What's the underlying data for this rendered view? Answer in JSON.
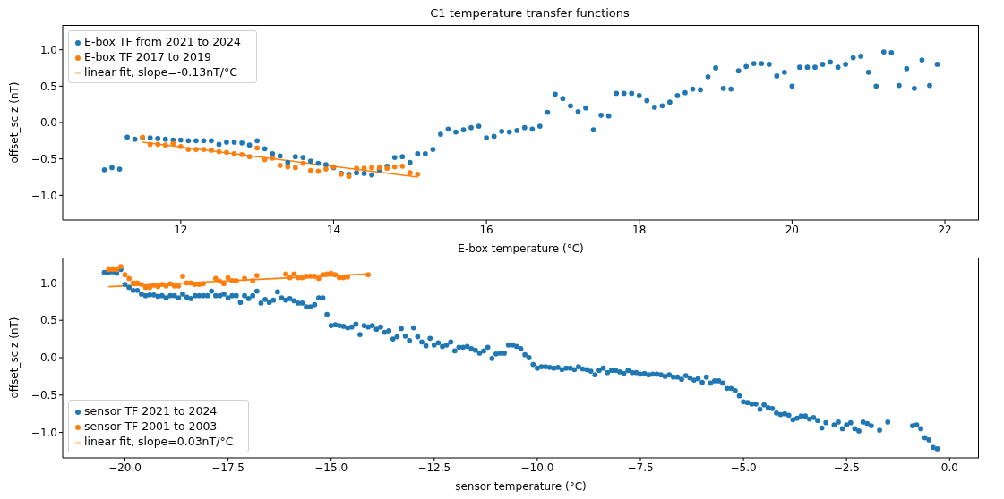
{
  "chart_data": [
    {
      "type": "scatter",
      "title": "C1 temperature transfer functions",
      "xlabel": "E-box temperature (°C)",
      "ylabel": "offset_sc z (nT)",
      "legend": "top left",
      "marker": "circle",
      "xlim": [
        10.455,
        22.445
      ],
      "xticks": [
        12,
        14,
        16,
        18,
        20,
        22
      ],
      "ylim": [
        -1.34,
        1.34
      ],
      "yticks": [
        {
          "value": -1,
          "label": "−1.0"
        },
        {
          "value": -0.5,
          "label": "−0.5"
        },
        {
          "value": 0,
          "label": "0.0"
        },
        {
          "value": 0.5,
          "label": "0.5"
        },
        {
          "value": 1,
          "label": "1.0"
        }
      ],
      "series": [
        {
          "name": "E-box TF from 2021 to 2024",
          "color": "#1f77b4",
          "x": [
            11.0,
            11.1,
            11.2,
            11.3,
            11.4,
            11.5,
            11.6,
            11.7,
            11.8,
            11.9,
            12.0,
            12.1,
            12.2,
            12.3,
            12.4,
            12.5,
            12.6,
            12.7,
            12.8,
            12.9,
            13.0,
            13.1,
            13.2,
            13.3,
            13.4,
            13.5,
            13.6,
            13.7,
            13.8,
            13.9,
            14.0,
            14.1,
            14.2,
            14.3,
            14.4,
            14.5,
            14.6,
            14.7,
            14.8,
            14.9,
            15.0,
            15.1,
            15.2,
            15.3,
            15.4,
            15.5,
            15.6,
            15.7,
            15.8,
            15.9,
            16.0,
            16.1,
            16.2,
            16.3,
            16.4,
            16.5,
            16.6,
            16.7,
            16.8,
            16.9,
            17.0,
            17.1,
            17.2,
            17.3,
            17.4,
            17.5,
            17.6,
            17.7,
            17.8,
            17.9,
            18.0,
            18.1,
            18.2,
            18.3,
            18.4,
            18.5,
            18.6,
            18.7,
            18.8,
            18.9,
            19.0,
            19.1,
            19.2,
            19.3,
            19.4,
            19.5,
            19.6,
            19.7,
            19.8,
            19.9,
            20.0,
            20.1,
            20.2,
            20.3,
            20.4,
            20.5,
            20.6,
            20.7,
            20.8,
            20.9,
            21.0,
            21.1,
            21.2,
            21.3,
            21.4,
            21.5,
            21.6,
            21.7,
            21.8,
            21.9
          ],
          "values": [
            -0.65,
            -0.62,
            -0.64,
            -0.2,
            -0.23,
            -0.21,
            -0.21,
            -0.22,
            -0.23,
            -0.24,
            -0.24,
            -0.25,
            -0.25,
            -0.25,
            -0.25,
            -0.3,
            -0.27,
            -0.27,
            -0.28,
            -0.31,
            -0.25,
            -0.36,
            -0.43,
            -0.46,
            -0.55,
            -0.47,
            -0.48,
            -0.53,
            -0.56,
            -0.58,
            -0.62,
            -0.7,
            -0.71,
            -0.69,
            -0.7,
            -0.72,
            -0.65,
            -0.6,
            -0.48,
            -0.47,
            -0.55,
            -0.43,
            -0.43,
            -0.37,
            -0.16,
            -0.09,
            -0.13,
            -0.1,
            -0.07,
            -0.05,
            -0.21,
            -0.19,
            -0.12,
            -0.13,
            -0.11,
            -0.07,
            -0.09,
            -0.05,
            0.14,
            0.39,
            0.33,
            0.23,
            0.15,
            0.2,
            -0.1,
            0.1,
            0.09,
            0.4,
            0.4,
            0.4,
            0.37,
            0.3,
            0.21,
            0.23,
            0.28,
            0.37,
            0.41,
            0.46,
            0.45,
            0.63,
            0.75,
            0.47,
            0.46,
            0.71,
            0.77,
            0.81,
            0.81,
            0.8,
            0.64,
            0.69,
            0.5,
            0.76,
            0.76,
            0.76,
            0.8,
            0.83,
            0.76,
            0.8,
            0.89,
            0.91,
            0.69,
            0.5,
            0.97,
            0.96,
            0.51,
            0.74,
            0.47,
            0.86,
            0.51,
            0.8
          ]
        },
        {
          "name": "E-box TF 2017 to 2019",
          "color": "#ff7f0e",
          "x": [
            11.5,
            11.6,
            11.7,
            11.8,
            11.9,
            12.0,
            12.1,
            12.2,
            12.3,
            12.4,
            12.5,
            12.6,
            12.7,
            12.8,
            12.9,
            13.0,
            13.1,
            13.2,
            13.3,
            13.4,
            13.5,
            13.6,
            13.7,
            13.8,
            13.9,
            14.0,
            14.1,
            14.2,
            14.3,
            14.4,
            14.5,
            14.6,
            14.7,
            14.8,
            14.9,
            15.0,
            15.1
          ],
          "values": [
            -0.2,
            -0.3,
            -0.3,
            -0.31,
            -0.29,
            -0.33,
            -0.37,
            -0.37,
            -0.37,
            -0.38,
            -0.4,
            -0.41,
            -0.43,
            -0.44,
            -0.47,
            -0.35,
            -0.51,
            -0.49,
            -0.59,
            -0.61,
            -0.62,
            -0.56,
            -0.66,
            -0.67,
            -0.64,
            -0.61,
            -0.71,
            -0.74,
            -0.63,
            -0.63,
            -0.62,
            -0.62,
            -0.63,
            -0.61,
            -0.6,
            -0.69,
            -0.71
          ]
        },
        {
          "name": "linear fit, slope=-0.13nT/°C",
          "type": "line",
          "marker": "none",
          "color": "#ff7f0e",
          "x": [
            11.5,
            15.1
          ],
          "values": [
            -0.27,
            -0.75
          ]
        }
      ]
    },
    {
      "type": "scatter",
      "xlabel": "sensor temperature (°C)",
      "ylabel": "offset_sc z (nT)",
      "legend": "bottom left",
      "marker": "circle",
      "xlim": [
        -21.51,
        0.71
      ],
      "xticks": [
        {
          "value": -20,
          "label": "−20.0"
        },
        {
          "value": -17.5,
          "label": "−17.5"
        },
        {
          "value": -15,
          "label": "−15.0"
        },
        {
          "value": -12.5,
          "label": "−12.5"
        },
        {
          "value": -10,
          "label": "−10.0"
        },
        {
          "value": -7.5,
          "label": "−7.5"
        },
        {
          "value": -5,
          "label": "−5.0"
        },
        {
          "value": -2.5,
          "label": "−2.5"
        },
        {
          "value": 0,
          "label": "0.0"
        }
      ],
      "ylim": [
        -1.34,
        1.34
      ],
      "yticks": [
        {
          "value": -1,
          "label": "−1.0"
        },
        {
          "value": -0.5,
          "label": "−0.5"
        },
        {
          "value": 0,
          "label": "0.0"
        },
        {
          "value": 0.5,
          "label": "0.5"
        },
        {
          "value": 1,
          "label": "1.0"
        }
      ],
      "series": [
        {
          "name": "sensor TF 2021 to 2024",
          "color": "#1f77b4",
          "x": [
            -20.5,
            -20.4,
            -20.3,
            -20.2,
            -20.1,
            -20.0,
            -19.9,
            -19.8,
            -19.7,
            -19.6,
            -19.5,
            -19.4,
            -19.3,
            -19.2,
            -19.1,
            -19.0,
            -18.9,
            -18.8,
            -18.7,
            -18.6,
            -18.5,
            -18.4,
            -18.3,
            -18.2,
            -18.1,
            -18.0,
            -17.9,
            -17.8,
            -17.7,
            -17.6,
            -17.5,
            -17.4,
            -17.3,
            -17.2,
            -17.1,
            -17.0,
            -16.9,
            -16.8,
            -16.7,
            -16.6,
            -16.5,
            -16.4,
            -16.3,
            -16.2,
            -16.1,
            -16.0,
            -15.9,
            -15.8,
            -15.7,
            -15.6,
            -15.5,
            -15.4,
            -15.3,
            -15.2,
            -15.1,
            -15.0,
            -14.9,
            -14.8,
            -14.7,
            -14.6,
            -14.5,
            -14.4,
            -14.3,
            -14.2,
            -14.1,
            -14.0,
            -13.9,
            -13.8,
            -13.7,
            -13.6,
            -13.5,
            -13.4,
            -13.3,
            -13.2,
            -13.1,
            -13.0,
            -12.9,
            -12.8,
            -12.7,
            -12.6,
            -12.5,
            -12.4,
            -12.3,
            -12.2,
            -12.1,
            -12.0,
            -11.9,
            -11.8,
            -11.7,
            -11.6,
            -11.5,
            -11.4,
            -11.3,
            -11.2,
            -11.1,
            -11.0,
            -10.9,
            -10.8,
            -10.7,
            -10.6,
            -10.5,
            -10.4,
            -10.3,
            -10.2,
            -10.1,
            -10.0,
            -9.9,
            -9.8,
            -9.7,
            -9.6,
            -9.5,
            -9.4,
            -9.3,
            -9.2,
            -9.1,
            -9.0,
            -8.9,
            -8.8,
            -8.7,
            -8.6,
            -8.5,
            -8.4,
            -8.3,
            -8.2,
            -8.1,
            -8.0,
            -7.9,
            -7.8,
            -7.7,
            -7.6,
            -7.5,
            -7.4,
            -7.3,
            -7.2,
            -7.1,
            -7.0,
            -6.9,
            -6.8,
            -6.7,
            -6.6,
            -6.5,
            -6.4,
            -6.3,
            -6.2,
            -6.1,
            -6.0,
            -5.9,
            -5.8,
            -5.7,
            -5.6,
            -5.5,
            -5.4,
            -5.3,
            -5.2,
            -5.1,
            -5.0,
            -4.9,
            -4.8,
            -4.7,
            -4.6,
            -4.5,
            -4.4,
            -4.3,
            -4.2,
            -4.1,
            -4.0,
            -3.9,
            -3.8,
            -3.7,
            -3.6,
            -3.5,
            -3.4,
            -3.3,
            -3.2,
            -3.1,
            -3.0,
            -2.8,
            -2.7,
            -2.6,
            -2.5,
            -2.4,
            -2.3,
            -2.2,
            -2.1,
            -2.0,
            -1.9,
            -1.7,
            -1.5,
            -0.9,
            -0.8,
            -0.7,
            -0.6,
            -0.5,
            -0.4,
            -0.3
          ],
          "values": [
            1.14,
            1.14,
            1.15,
            1.13,
            1.18,
            0.98,
            0.94,
            0.9,
            0.9,
            0.85,
            0.83,
            0.84,
            0.84,
            0.82,
            0.83,
            0.8,
            0.83,
            0.83,
            0.8,
            0.85,
            0.81,
            0.79,
            0.83,
            0.83,
            0.83,
            0.83,
            0.89,
            0.83,
            0.83,
            0.85,
            0.8,
            0.83,
            0.83,
            0.74,
            0.83,
            0.79,
            0.83,
            0.89,
            0.73,
            0.78,
            0.74,
            0.77,
            0.88,
            0.8,
            0.77,
            0.79,
            0.76,
            0.73,
            0.73,
            0.68,
            0.68,
            0.71,
            0.8,
            0.8,
            0.58,
            0.43,
            0.44,
            0.43,
            0.42,
            0.4,
            0.41,
            0.45,
            0.31,
            0.43,
            0.41,
            0.43,
            0.38,
            0.41,
            0.34,
            0.36,
            0.25,
            0.28,
            0.39,
            0.29,
            0.23,
            0.4,
            0.28,
            0.21,
            0.16,
            0.26,
            0.17,
            0.2,
            0.15,
            0.17,
            0.21,
            0.09,
            0.14,
            0.14,
            0.15,
            0.12,
            0.1,
            0.06,
            0.09,
            0.14,
            -0.01,
            0.05,
            0.06,
            0.06,
            0.17,
            0.17,
            0.15,
            0.12,
            0.04,
            0.0,
            -0.09,
            -0.14,
            -0.12,
            -0.12,
            -0.13,
            -0.14,
            -0.13,
            -0.16,
            -0.14,
            -0.14,
            -0.16,
            -0.12,
            -0.15,
            -0.16,
            -0.18,
            -0.23,
            -0.17,
            -0.14,
            -0.2,
            -0.17,
            -0.17,
            -0.19,
            -0.21,
            -0.17,
            -0.2,
            -0.2,
            -0.22,
            -0.21,
            -0.23,
            -0.22,
            -0.22,
            -0.23,
            -0.25,
            -0.23,
            -0.26,
            -0.26,
            -0.29,
            -0.24,
            -0.27,
            -0.3,
            -0.28,
            -0.33,
            -0.26,
            -0.34,
            -0.31,
            -0.31,
            -0.34,
            -0.41,
            -0.41,
            -0.44,
            -0.51,
            -0.59,
            -0.6,
            -0.62,
            -0.62,
            -0.69,
            -0.63,
            -0.67,
            -0.68,
            -0.74,
            -0.76,
            -0.75,
            -0.77,
            -0.83,
            -0.81,
            -0.78,
            -0.78,
            -0.82,
            -0.8,
            -0.84,
            -0.94,
            -0.87,
            -0.9,
            -0.86,
            -0.95,
            -0.9,
            -0.87,
            -0.95,
            -0.98,
            -0.86,
            -0.88,
            -0.91,
            -0.97,
            -0.86,
            -0.91,
            -0.9,
            -0.95,
            -1.07,
            -1.1,
            -1.2,
            -1.22
          ]
        },
        {
          "name": "sensor TF 2001 to 2003",
          "color": "#ff7f0e",
          "x": [
            -20.4,
            -20.3,
            -20.2,
            -20.1,
            -20.0,
            -19.9,
            -19.8,
            -19.7,
            -19.6,
            -19.5,
            -19.4,
            -19.3,
            -19.2,
            -19.1,
            -19.0,
            -18.9,
            -18.8,
            -18.7,
            -18.6,
            -18.5,
            -18.4,
            -18.3,
            -18.2,
            -18.1,
            -17.8,
            -17.7,
            -17.6,
            -17.5,
            -17.4,
            -17.3,
            -17.1,
            -16.9,
            -16.8,
            -16.1,
            -16.0,
            -15.9,
            -15.8,
            -15.7,
            -15.6,
            -15.5,
            -15.4,
            -15.3,
            -15.2,
            -15.1,
            -15.0,
            -14.9,
            -14.8,
            -14.7,
            -14.6,
            -14.1
          ],
          "values": [
            1.18,
            1.18,
            1.18,
            1.22,
            1.11,
            1.06,
            1.0,
            1.0,
            0.98,
            0.94,
            0.94,
            0.97,
            0.95,
            0.98,
            0.96,
            0.99,
            0.96,
            0.96,
            1.09,
            1.0,
            1.0,
            0.98,
            0.98,
            0.99,
            1.06,
            1.02,
            0.99,
            1.07,
            1.03,
            1.03,
            1.06,
            1.03,
            1.1,
            1.12,
            1.07,
            1.12,
            1.07,
            1.07,
            1.09,
            1.09,
            1.09,
            1.06,
            1.11,
            1.12,
            1.13,
            1.11,
            1.07,
            1.07,
            1.08,
            1.11
          ]
        },
        {
          "name": "linear fit, slope=0.03nT/°C",
          "type": "line",
          "marker": "none",
          "color": "#ff7f0e",
          "x": [
            -20.4,
            -14.1
          ],
          "values": [
            0.95,
            1.12
          ]
        }
      ]
    }
  ]
}
